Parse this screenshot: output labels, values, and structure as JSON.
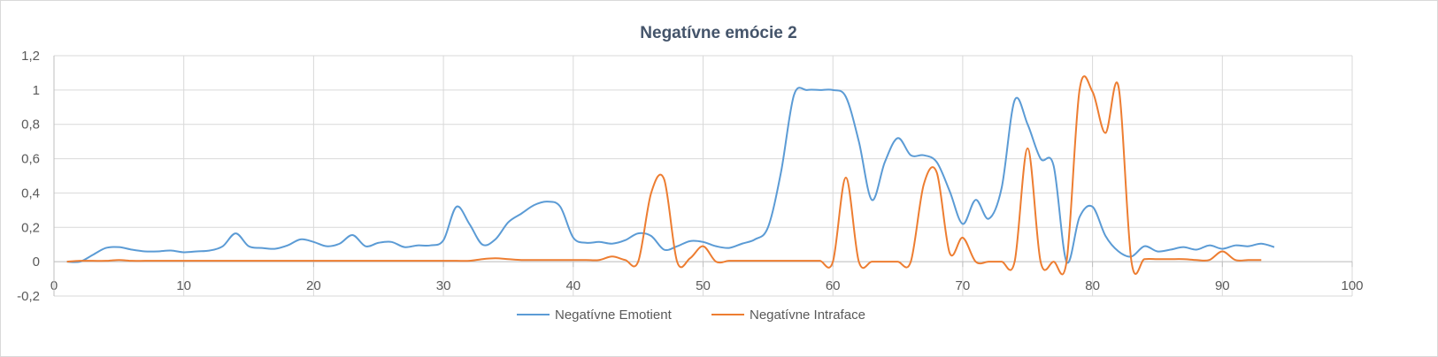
{
  "chart_data": {
    "type": "line",
    "title": "Negatívne emócie 2",
    "xlabel": "",
    "ylabel": "",
    "xlim": [
      0,
      100
    ],
    "ylim": [
      -0.2,
      1.2
    ],
    "x_ticks": [
      "0",
      "10",
      "20",
      "30",
      "40",
      "50",
      "60",
      "70",
      "80",
      "90",
      "100"
    ],
    "y_ticks": [
      "-0,2",
      "0",
      "0,2",
      "0,4",
      "0,6",
      "0,8",
      "1",
      "1,2"
    ],
    "grid": true,
    "legend_position": "bottom",
    "series": [
      {
        "name": "Negatívne Emotient",
        "color": "#5b9bd5",
        "points": [
          [
            1,
            0
          ],
          [
            2,
            0
          ],
          [
            3,
            0.04
          ],
          [
            4,
            0.08
          ],
          [
            5,
            0.085
          ],
          [
            6,
            0.07
          ],
          [
            7,
            0.06
          ],
          [
            8,
            0.06
          ],
          [
            9,
            0.065
          ],
          [
            10,
            0.055
          ],
          [
            11,
            0.06
          ],
          [
            12,
            0.065
          ],
          [
            13,
            0.09
          ],
          [
            14,
            0.165
          ],
          [
            15,
            0.09
          ],
          [
            16,
            0.08
          ],
          [
            17,
            0.075
          ],
          [
            18,
            0.095
          ],
          [
            19,
            0.13
          ],
          [
            20,
            0.115
          ],
          [
            21,
            0.09
          ],
          [
            22,
            0.105
          ],
          [
            23,
            0.155
          ],
          [
            24,
            0.09
          ],
          [
            25,
            0.11
          ],
          [
            26,
            0.115
          ],
          [
            27,
            0.085
          ],
          [
            28,
            0.095
          ],
          [
            29,
            0.095
          ],
          [
            30,
            0.125
          ],
          [
            31,
            0.32
          ],
          [
            32,
            0.22
          ],
          [
            33,
            0.1
          ],
          [
            34,
            0.13
          ],
          [
            35,
            0.23
          ],
          [
            36,
            0.28
          ],
          [
            37,
            0.33
          ],
          [
            38,
            0.35
          ],
          [
            39,
            0.32
          ],
          [
            40,
            0.14
          ],
          [
            41,
            0.11
          ],
          [
            42,
            0.115
          ],
          [
            43,
            0.105
          ],
          [
            44,
            0.125
          ],
          [
            45,
            0.165
          ],
          [
            46,
            0.15
          ],
          [
            47,
            0.07
          ],
          [
            48,
            0.09
          ],
          [
            49,
            0.12
          ],
          [
            50,
            0.115
          ],
          [
            51,
            0.09
          ],
          [
            52,
            0.08
          ],
          [
            53,
            0.105
          ],
          [
            54,
            0.13
          ],
          [
            55,
            0.2
          ],
          [
            56,
            0.52
          ],
          [
            57,
            0.97
          ],
          [
            58,
            1.0
          ],
          [
            59,
            1.0
          ],
          [
            60,
            1.0
          ],
          [
            61,
            0.96
          ],
          [
            62,
            0.7
          ],
          [
            63,
            0.36
          ],
          [
            64,
            0.58
          ],
          [
            65,
            0.72
          ],
          [
            66,
            0.62
          ],
          [
            67,
            0.62
          ],
          [
            68,
            0.58
          ],
          [
            69,
            0.41
          ],
          [
            70,
            0.22
          ],
          [
            71,
            0.36
          ],
          [
            72,
            0.25
          ],
          [
            73,
            0.43
          ],
          [
            74,
            0.94
          ],
          [
            75,
            0.8
          ],
          [
            76,
            0.6
          ],
          [
            77,
            0.56
          ],
          [
            78,
            0
          ],
          [
            79,
            0.26
          ],
          [
            80,
            0.32
          ],
          [
            81,
            0.15
          ],
          [
            82,
            0.06
          ],
          [
            83,
            0.03
          ],
          [
            84,
            0.09
          ],
          [
            85,
            0.06
          ],
          [
            86,
            0.07
          ],
          [
            87,
            0.085
          ],
          [
            88,
            0.07
          ],
          [
            89,
            0.095
          ],
          [
            90,
            0.075
          ],
          [
            91,
            0.095
          ],
          [
            92,
            0.09
          ],
          [
            93,
            0.105
          ],
          [
            94,
            0.085
          ]
        ]
      },
      {
        "name": "Negatívne Intraface",
        "color": "#ed7d31",
        "points": [
          [
            1,
            0
          ],
          [
            2,
            0.005
          ],
          [
            3,
            0.005
          ],
          [
            4,
            0.005
          ],
          [
            5,
            0.01
          ],
          [
            6,
            0.005
          ],
          [
            7,
            0.005
          ],
          [
            8,
            0.005
          ],
          [
            9,
            0.005
          ],
          [
            10,
            0.005
          ],
          [
            11,
            0.005
          ],
          [
            12,
            0.005
          ],
          [
            13,
            0.005
          ],
          [
            14,
            0.005
          ],
          [
            15,
            0.005
          ],
          [
            16,
            0.005
          ],
          [
            17,
            0.005
          ],
          [
            18,
            0.005
          ],
          [
            19,
            0.005
          ],
          [
            20,
            0.005
          ],
          [
            21,
            0.005
          ],
          [
            22,
            0.005
          ],
          [
            23,
            0.005
          ],
          [
            24,
            0.005
          ],
          [
            25,
            0.005
          ],
          [
            26,
            0.005
          ],
          [
            27,
            0.005
          ],
          [
            28,
            0.005
          ],
          [
            29,
            0.005
          ],
          [
            30,
            0.005
          ],
          [
            31,
            0.005
          ],
          [
            32,
            0.005
          ],
          [
            33,
            0.015
          ],
          [
            34,
            0.02
          ],
          [
            35,
            0.015
          ],
          [
            36,
            0.01
          ],
          [
            37,
            0.01
          ],
          [
            38,
            0.01
          ],
          [
            39,
            0.01
          ],
          [
            40,
            0.01
          ],
          [
            41,
            0.01
          ],
          [
            42,
            0.01
          ],
          [
            43,
            0.03
          ],
          [
            44,
            0.01
          ],
          [
            45,
            0.0
          ],
          [
            46,
            0.4
          ],
          [
            47,
            0.48
          ],
          [
            48,
            0.0
          ],
          [
            49,
            0.02
          ],
          [
            50,
            0.09
          ],
          [
            51,
            0.0
          ],
          [
            52,
            0.005
          ],
          [
            53,
            0.005
          ],
          [
            54,
            0.005
          ],
          [
            55,
            0.005
          ],
          [
            56,
            0.005
          ],
          [
            57,
            0.005
          ],
          [
            58,
            0.005
          ],
          [
            59,
            0.005
          ],
          [
            60,
            0.0
          ],
          [
            61,
            0.49
          ],
          [
            62,
            0.0
          ],
          [
            63,
            0.0
          ],
          [
            64,
            0.0
          ],
          [
            65,
            0.0
          ],
          [
            66,
            0.0
          ],
          [
            67,
            0.45
          ],
          [
            68,
            0.52
          ],
          [
            69,
            0.05
          ],
          [
            70,
            0.14
          ],
          [
            71,
            0.0
          ],
          [
            72,
            0.0
          ],
          [
            73,
            0.0
          ],
          [
            74,
            0.0
          ],
          [
            75,
            0.66
          ],
          [
            76,
            0.0
          ],
          [
            77,
            0.0
          ],
          [
            78,
            0.0
          ],
          [
            79,
            1.0
          ],
          [
            80,
            0.99
          ],
          [
            81,
            0.75
          ],
          [
            82,
            1.02
          ],
          [
            83,
            0.0
          ],
          [
            84,
            0.015
          ],
          [
            85,
            0.015
          ],
          [
            86,
            0.015
          ],
          [
            87,
            0.015
          ],
          [
            88,
            0.01
          ],
          [
            89,
            0.01
          ],
          [
            90,
            0.06
          ],
          [
            91,
            0.01
          ],
          [
            92,
            0.01
          ],
          [
            93,
            0.01
          ]
        ]
      }
    ]
  }
}
